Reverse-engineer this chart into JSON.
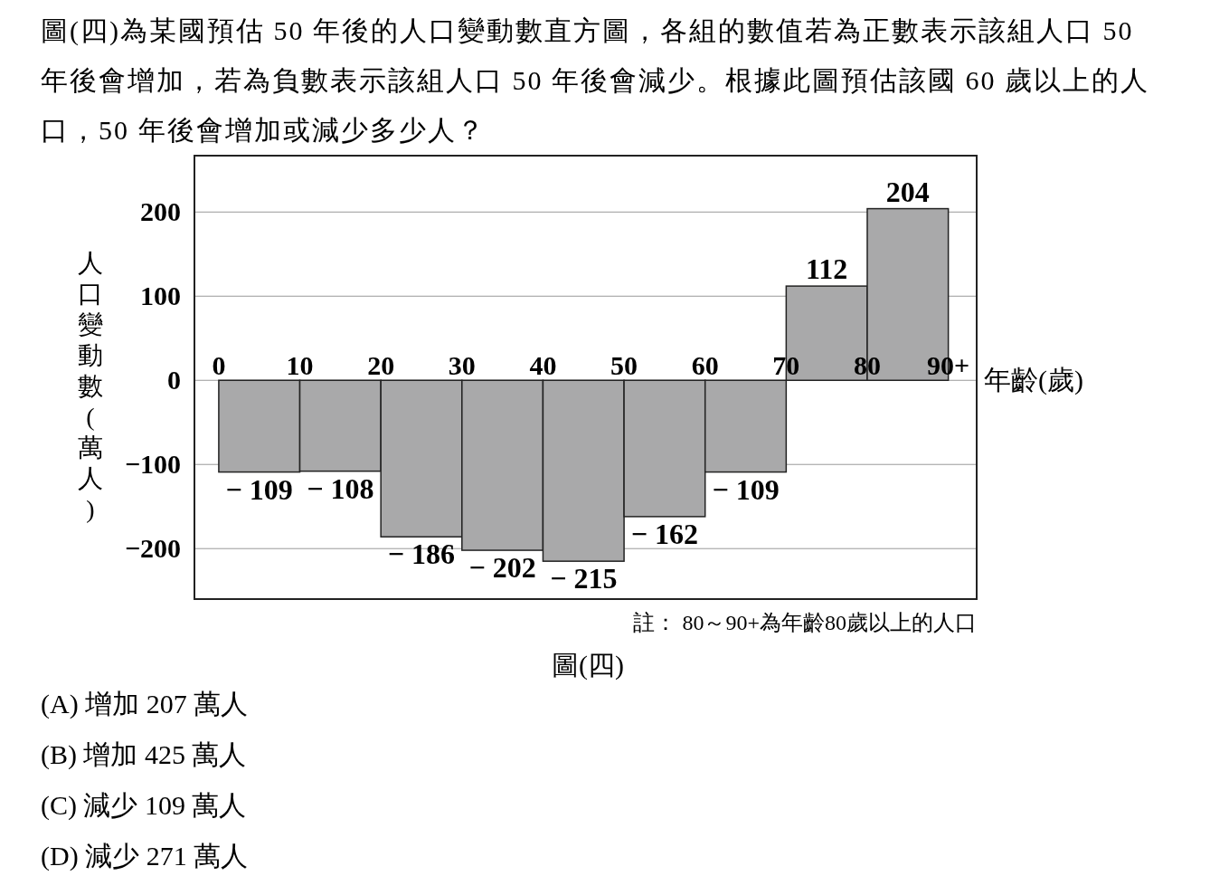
{
  "chart_data": {
    "type": "histogram",
    "title": "圖(四)為某國預估 50 年後的人口變動數直方圖，各組的數值若為正數表示該組人口 50 年後會增加，若為負數表示該組人口 50 年後會減少。根據此圖預估該國 60 歲以上的人口，50 年後會增加或減少多少人？",
    "xlabel": "年齡(歲)",
    "ylabel": "人口變動數(萬人)",
    "bins": [
      0,
      10,
      20,
      30,
      40,
      50,
      60,
      70,
      80,
      90
    ],
    "values": [
      -109,
      -108,
      -186,
      -202,
      -215,
      -162,
      -109,
      112,
      204
    ],
    "color": "#a9a9aa",
    "xlim": [
      -3,
      93.5
    ],
    "ylim": [
      -260,
      267
    ],
    "xticks": [
      0,
      10,
      20,
      30,
      40,
      50,
      60,
      70,
      80,
      {
        "value": 90,
        "label": "90+"
      }
    ],
    "yticks": [
      -200,
      -100,
      0,
      100,
      200
    ],
    "grid": "y",
    "data_labels": true,
    "legend": false,
    "annotations": [
      "註： 80～90+為年齡80歲以上的人口",
      "圖(四)",
      "(A) 增加 207 萬人",
      "(B) 增加 425 萬人",
      "(C) 減少 109 萬人",
      "(D) 減少 271 萬人"
    ]
  }
}
